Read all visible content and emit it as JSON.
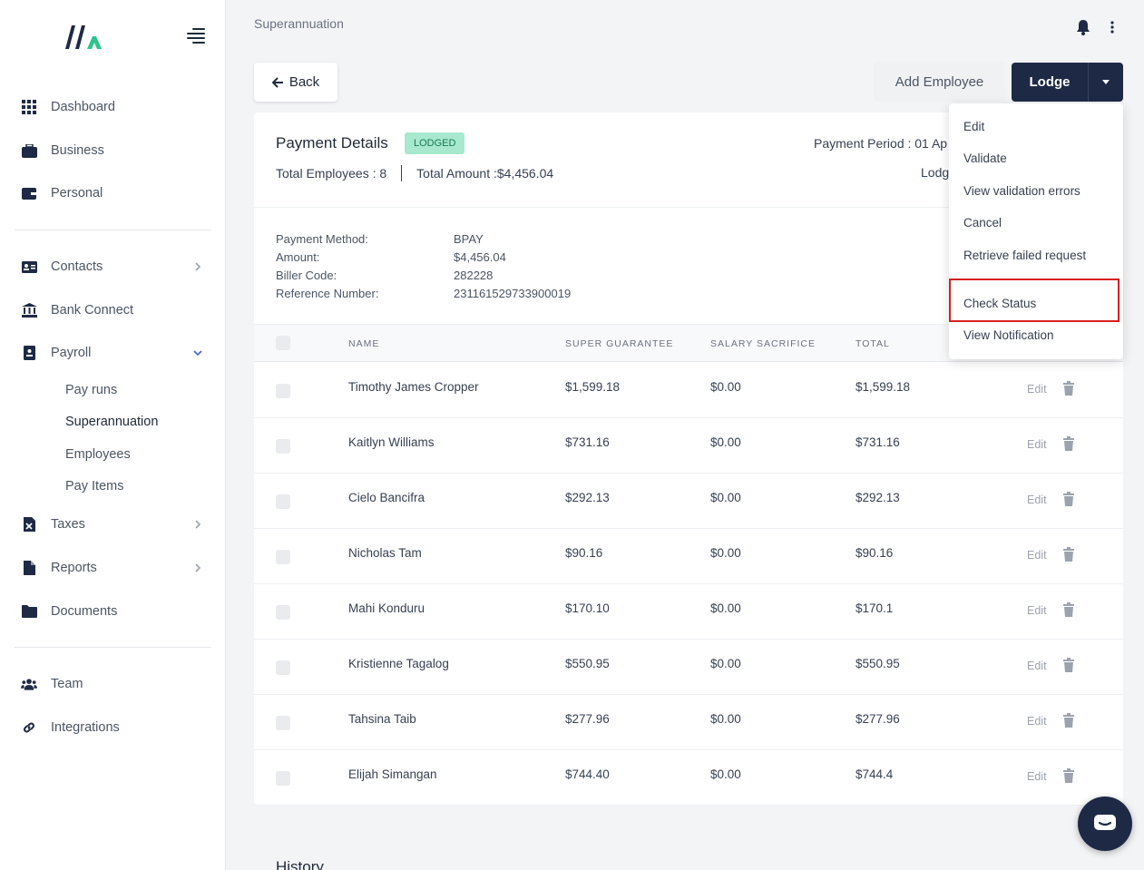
{
  "sidebar": {
    "items": [
      {
        "label": "Dashboard",
        "icon": "grid-icon"
      },
      {
        "label": "Business",
        "icon": "briefcase-icon"
      },
      {
        "label": "Personal",
        "icon": "wallet-icon"
      },
      {
        "label": "Contacts",
        "icon": "contact-card-icon"
      },
      {
        "label": "Bank Connect",
        "icon": "bank-icon"
      },
      {
        "label": "Payroll",
        "icon": "payroll-icon"
      },
      {
        "label": "Taxes",
        "icon": "tax-file-icon"
      },
      {
        "label": "Reports",
        "icon": "file-icon"
      },
      {
        "label": "Documents",
        "icon": "folder-icon"
      },
      {
        "label": "Team",
        "icon": "users-icon"
      },
      {
        "label": "Integrations",
        "icon": "link-icon"
      }
    ],
    "payroll_sub": [
      "Pay runs",
      "Superannuation",
      "Employees",
      "Pay Items"
    ],
    "active_sub": "Superannuation"
  },
  "header": {
    "breadcrumb": "Superannuation"
  },
  "toolbar": {
    "back_label": "Back",
    "add_employee_label": "Add Employee",
    "lodge_label": "Lodge"
  },
  "payment": {
    "title": "Payment Details",
    "status": "LODGED",
    "total_employees": "Total Employees : 8",
    "total_amount": "Total Amount :$4,456.04",
    "period_label": "Payment Period : 01 Ap",
    "lodg_label": "Lodg",
    "info_labels": [
      "Payment Method:",
      "Amount:",
      "Biller Code:",
      "Reference Number:"
    ],
    "info_values": [
      "BPAY",
      "$4,456.04",
      "282228",
      "231161529733900019"
    ]
  },
  "table": {
    "headers": [
      "NAME",
      "SUPER GUARANTEE",
      "SALARY SACRIFICE",
      "TOTAL"
    ],
    "edit_label": "Edit",
    "rows": [
      {
        "name": "Timothy James Cropper",
        "sg": "$1,599.18",
        "ss": "$0.00",
        "total": "$1,599.18"
      },
      {
        "name": "Kaitlyn Williams",
        "sg": "$731.16",
        "ss": "$0.00",
        "total": "$731.16"
      },
      {
        "name": "Cielo Bancifra",
        "sg": "$292.13",
        "ss": "$0.00",
        "total": "$292.13"
      },
      {
        "name": "Nicholas Tam",
        "sg": "$90.16",
        "ss": "$0.00",
        "total": "$90.16"
      },
      {
        "name": "Mahi Konduru",
        "sg": "$170.10",
        "ss": "$0.00",
        "total": "$170.1"
      },
      {
        "name": "Kristienne Tagalog",
        "sg": "$550.95",
        "ss": "$0.00",
        "total": "$550.95"
      },
      {
        "name": "Tahsina Taib",
        "sg": "$277.96",
        "ss": "$0.00",
        "total": "$277.96"
      },
      {
        "name": "Elijah Simangan",
        "sg": "$744.40",
        "ss": "$0.00",
        "total": "$744.4"
      }
    ]
  },
  "history_title": "History",
  "dropdown": {
    "items": [
      "Edit",
      "Validate",
      "View validation errors",
      "Cancel",
      "Retrieve failed request",
      "Check Status",
      "View Notification"
    ],
    "highlighted": "Check Status"
  },
  "colors": {
    "navy": "#1e2a45",
    "badge_bg": "#a7e8cf",
    "badge_text": "#167a55",
    "highlight": "#d91e1e",
    "logo_accent": "#2bc48a"
  }
}
